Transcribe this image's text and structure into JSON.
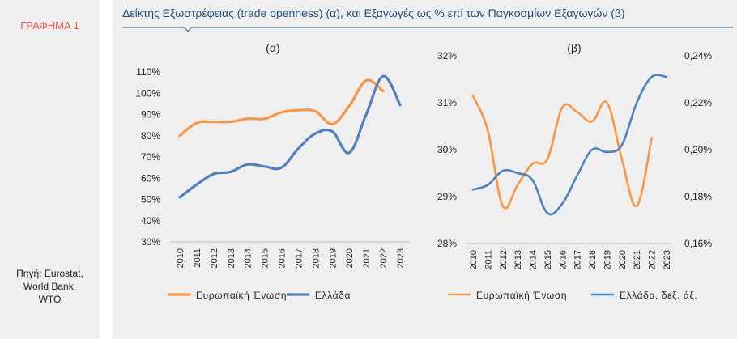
{
  "figure_label": "ΓΡΑΦΗΜΑ 1",
  "title": "Δείκτης Εξωστρέφειας (trade openness) (α), και Εξαγωγές ως % επί των Παγκοσμίων Εξαγωγών (β)",
  "source": "Πηγή: Eurostat,\nWorld Bank,\nWTO",
  "colors": {
    "eu": "#f79646",
    "greece": "#4f81bd",
    "title": "#1f4e79",
    "label": "#e8554a"
  },
  "chart_data": [
    {
      "type": "line",
      "title": "(α)",
      "x": [
        "2010",
        "2011",
        "2012",
        "2013",
        "2014",
        "2015",
        "2016",
        "2017",
        "2018",
        "2019",
        "2020",
        "2021",
        "2022",
        "2023"
      ],
      "ylim": [
        30,
        110
      ],
      "yticks": [
        "30%",
        "40%",
        "50%",
        "60%",
        "70%",
        "80%",
        "90%",
        "100%",
        "110%"
      ],
      "legend": "bottom",
      "series": [
        {
          "name": "Ευρωπαϊκή Ένωση",
          "color": "#f79646",
          "values": [
            80,
            86,
            86.5,
            86.5,
            88,
            88,
            91,
            92,
            91.5,
            85.5,
            94,
            106,
            101,
            null
          ]
        },
        {
          "name": "Ελλάδα",
          "color": "#4f81bd",
          "values": [
            51,
            57,
            62,
            63,
            66.5,
            65.5,
            65,
            74,
            81,
            82,
            72,
            90,
            108,
            94.5
          ]
        }
      ]
    },
    {
      "type": "line",
      "title": "(β)",
      "x": [
        "2010",
        "2011",
        "2012",
        "2013",
        "2014",
        "2015",
        "2016",
        "2017",
        "2018",
        "2019",
        "2020",
        "2021",
        "2022",
        "2023"
      ],
      "ylim": [
        28,
        32
      ],
      "yticks": [
        "28%",
        "29%",
        "30%",
        "31%",
        "32%"
      ],
      "y2lim": [
        0.16,
        0.24
      ],
      "y2ticks": [
        "0,16%",
        "0,18%",
        "0,20%",
        "0,22%",
        "0,24%"
      ],
      "legend": "bottom",
      "series": [
        {
          "name": "Ευρωπαϊκή Ένωση",
          "color": "#f79646",
          "axis": "left",
          "values": [
            31.15,
            30.4,
            28.8,
            29.25,
            29.7,
            29.8,
            30.9,
            30.8,
            30.6,
            31.0,
            29.8,
            28.8,
            30.25,
            null
          ]
        },
        {
          "name": "Ελλάδα, δεξ. άξ.",
          "color": "#4f81bd",
          "axis": "right",
          "values": [
            0.183,
            0.185,
            0.191,
            0.19,
            0.187,
            0.173,
            0.177,
            0.189,
            0.2,
            0.199,
            0.202,
            0.22,
            0.231,
            0.231
          ]
        }
      ]
    }
  ]
}
